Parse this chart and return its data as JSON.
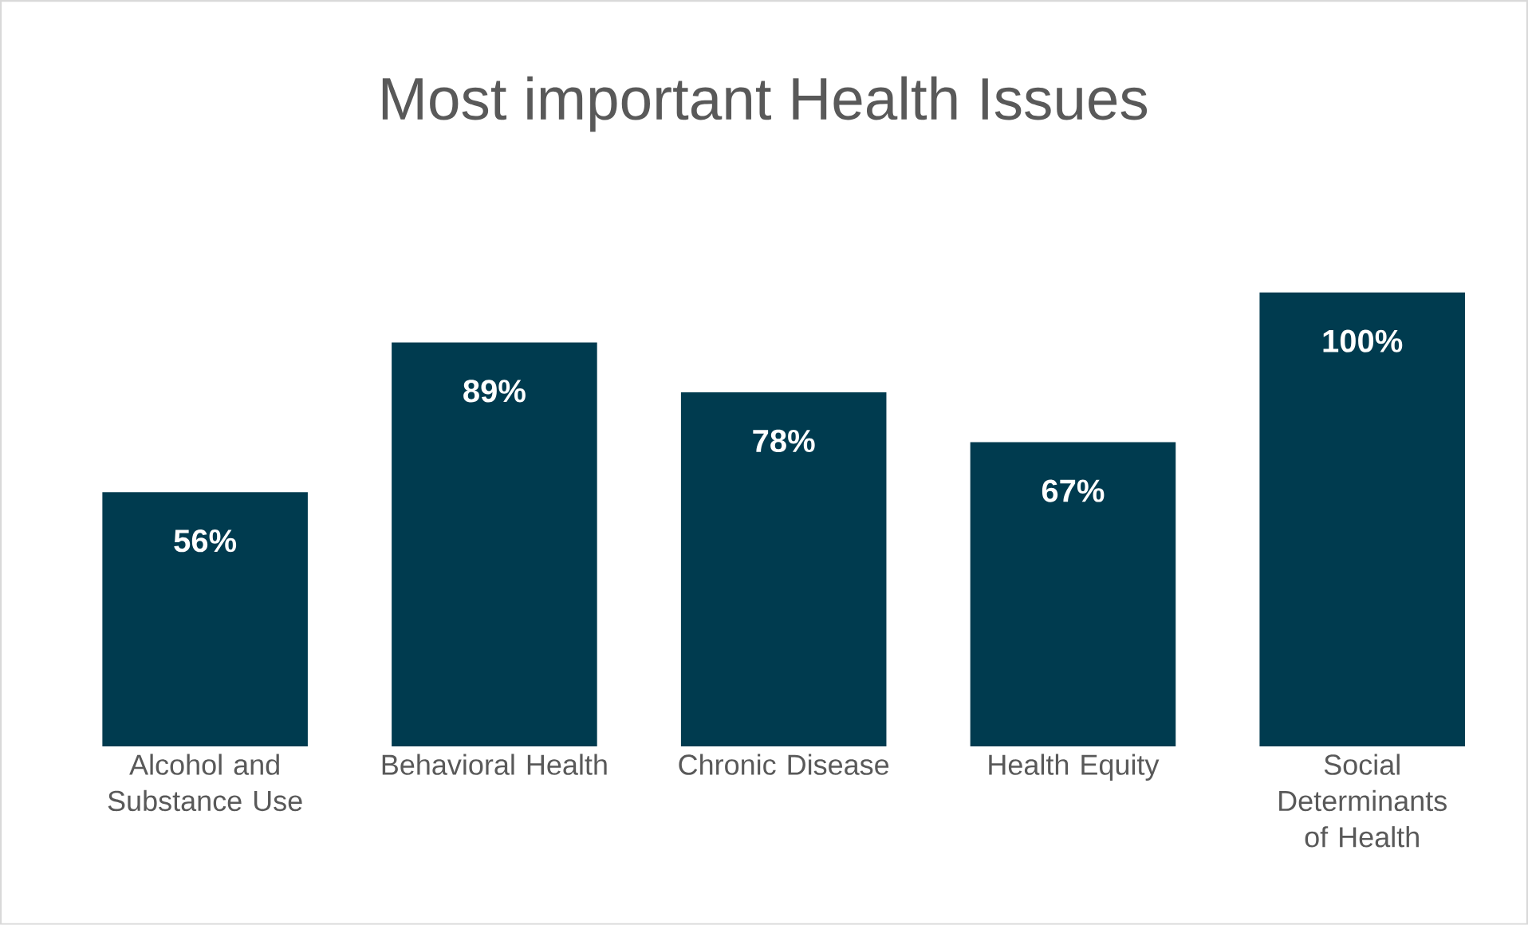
{
  "chart_data": {
    "type": "bar",
    "title": "Most important Health Issues",
    "categories": [
      "Alcohol and Substance Use",
      "Behavioral Health",
      "Chronic Disease",
      "Health Equity",
      "Social Determinants of Health"
    ],
    "values": [
      56,
      89,
      78,
      67,
      100
    ],
    "value_labels": [
      "56%",
      "89%",
      "78%",
      "67%",
      "100%"
    ],
    "color": "#003b4f"
  }
}
